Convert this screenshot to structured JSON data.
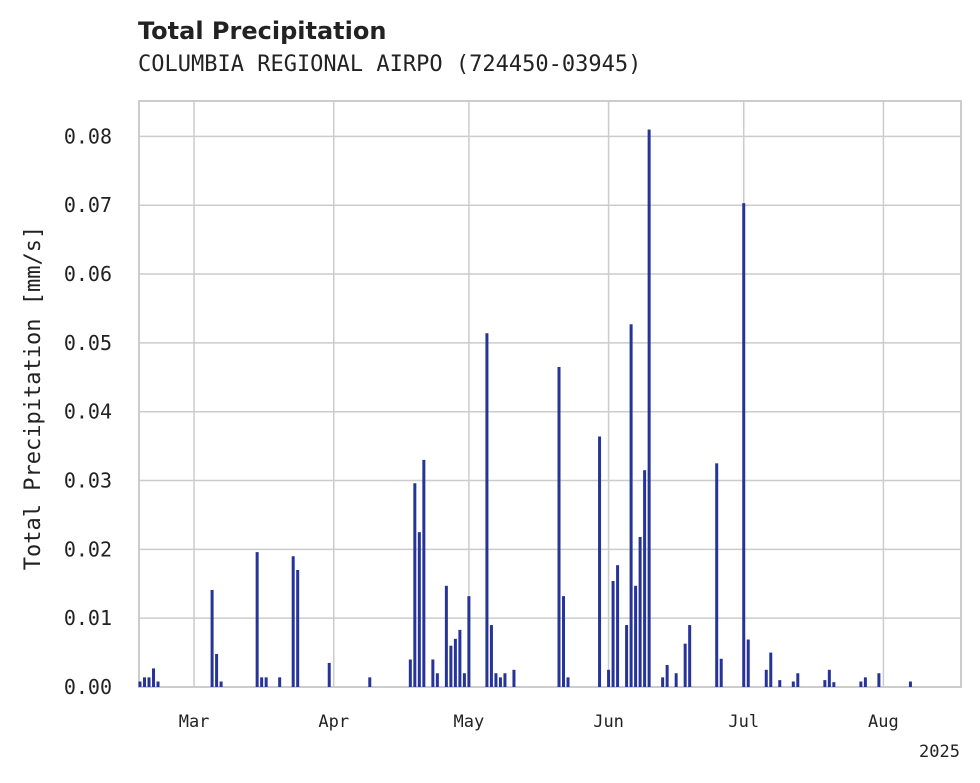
{
  "chart_data": {
    "type": "bar",
    "title": "Total Precipitation",
    "subtitle": "COLUMBIA REGIONAL AIRPO (724450-03945)",
    "xlabel": "",
    "ylabel": "Total Precipitation [mm/s]",
    "ylim": [
      0,
      0.085
    ],
    "yticks": [
      "0.00",
      "0.01",
      "0.02",
      "0.03",
      "0.04",
      "0.05",
      "0.06",
      "0.07",
      "0.08"
    ],
    "xticks": [
      {
        "label": "Mar",
        "date": "2025-03-01"
      },
      {
        "label": "Apr",
        "date": "2025-04-01"
      },
      {
        "label": "May",
        "date": "2025-05-01"
      },
      {
        "label": "Jun",
        "date": "2025-06-01"
      },
      {
        "label": "Jul",
        "date": "2025-07-01"
      },
      {
        "label": "Aug",
        "date": "2025-08-01"
      }
    ],
    "x_year_label": "2025",
    "xlim": [
      "2025-02-17",
      "2025-08-18"
    ],
    "grid": true,
    "bar_color": "#26349a",
    "series": [
      {
        "x": [
          "2025-02-17",
          "2025-02-18",
          "2025-02-19",
          "2025-02-20",
          "2025-02-21",
          "2025-03-05",
          "2025-03-06",
          "2025-03-07",
          "2025-03-15",
          "2025-03-16",
          "2025-03-17",
          "2025-03-20",
          "2025-03-23",
          "2025-03-24",
          "2025-03-31",
          "2025-04-09",
          "2025-04-18",
          "2025-04-19",
          "2025-04-20",
          "2025-04-21",
          "2025-04-23",
          "2025-04-24",
          "2025-04-26",
          "2025-04-27",
          "2025-04-28",
          "2025-04-29",
          "2025-04-30",
          "2025-05-01",
          "2025-05-05",
          "2025-05-06",
          "2025-05-07",
          "2025-05-08",
          "2025-05-09",
          "2025-05-11",
          "2025-05-21",
          "2025-05-22",
          "2025-05-23",
          "2025-05-30",
          "2025-06-01",
          "2025-06-02",
          "2025-06-03",
          "2025-06-05",
          "2025-06-06",
          "2025-06-07",
          "2025-06-08",
          "2025-06-09",
          "2025-06-10",
          "2025-06-13",
          "2025-06-14",
          "2025-06-16",
          "2025-06-18",
          "2025-06-19",
          "2025-06-25",
          "2025-06-26",
          "2025-07-01",
          "2025-07-02",
          "2025-07-06",
          "2025-07-07",
          "2025-07-09",
          "2025-07-12",
          "2025-07-13",
          "2025-07-19",
          "2025-07-20",
          "2025-07-21",
          "2025-07-27",
          "2025-07-28",
          "2025-07-31",
          "2025-08-07"
        ],
        "values": [
          0.0008,
          0.0014,
          0.0014,
          0.0027,
          0.0008,
          0.0141,
          0.0048,
          0.0008,
          0.0196,
          0.0014,
          0.0014,
          0.0014,
          0.019,
          0.017,
          0.0035,
          0.0014,
          0.004,
          0.0296,
          0.0225,
          0.033,
          0.004,
          0.002,
          0.0147,
          0.006,
          0.007,
          0.0083,
          0.002,
          0.0132,
          0.0514,
          0.009,
          0.002,
          0.0014,
          0.002,
          0.0025,
          0.0465,
          0.0132,
          0.0014,
          0.0364,
          0.0025,
          0.0154,
          0.0177,
          0.009,
          0.0527,
          0.0147,
          0.0218,
          0.0315,
          0.081,
          0.0014,
          0.0032,
          0.002,
          0.0063,
          0.009,
          0.0325,
          0.0041,
          0.0703,
          0.0069,
          0.0025,
          0.005,
          0.001,
          0.0008,
          0.002,
          0.001,
          0.0025,
          0.0007,
          0.0008,
          0.0014,
          0.002,
          0.0008
        ]
      }
    ]
  }
}
